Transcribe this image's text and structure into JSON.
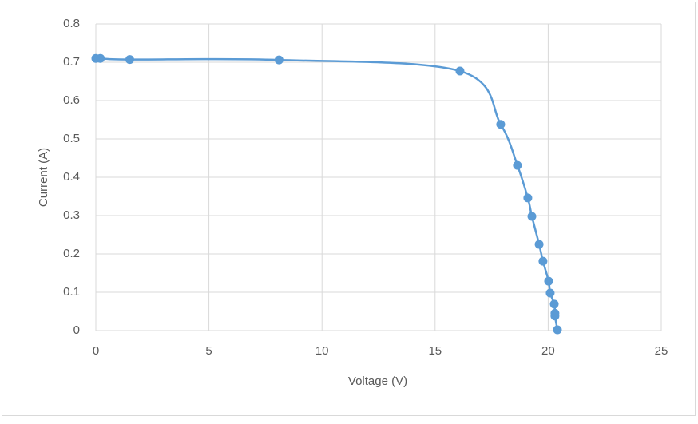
{
  "chart_data": {
    "type": "scatter",
    "x_label": "Voltage (V)",
    "y_label": "Current (A)",
    "x": [
      0,
      0.2,
      1.5,
      8.1,
      16.1,
      17.9,
      18.64,
      19.1,
      19.28,
      19.6,
      19.77,
      20.02,
      20.09,
      20.27,
      20.3,
      20.3,
      20.41
    ],
    "values": [
      0.71,
      0.71,
      0.707,
      0.706,
      0.677,
      0.538,
      0.431,
      0.346,
      0.298,
      0.225,
      0.181,
      0.129,
      0.098,
      0.069,
      0.045,
      0.038,
      0.002
    ],
    "color": "#5b9bd5",
    "xlim": [
      0,
      25
    ],
    "xticks": [
      0,
      5,
      10,
      15,
      20,
      25
    ],
    "ylim": [
      0,
      0.8
    ],
    "yticks": [
      0,
      0.1,
      0.2,
      0.3,
      0.4,
      0.5,
      0.6,
      0.7,
      0.8
    ],
    "grid": true,
    "smooth": true
  }
}
